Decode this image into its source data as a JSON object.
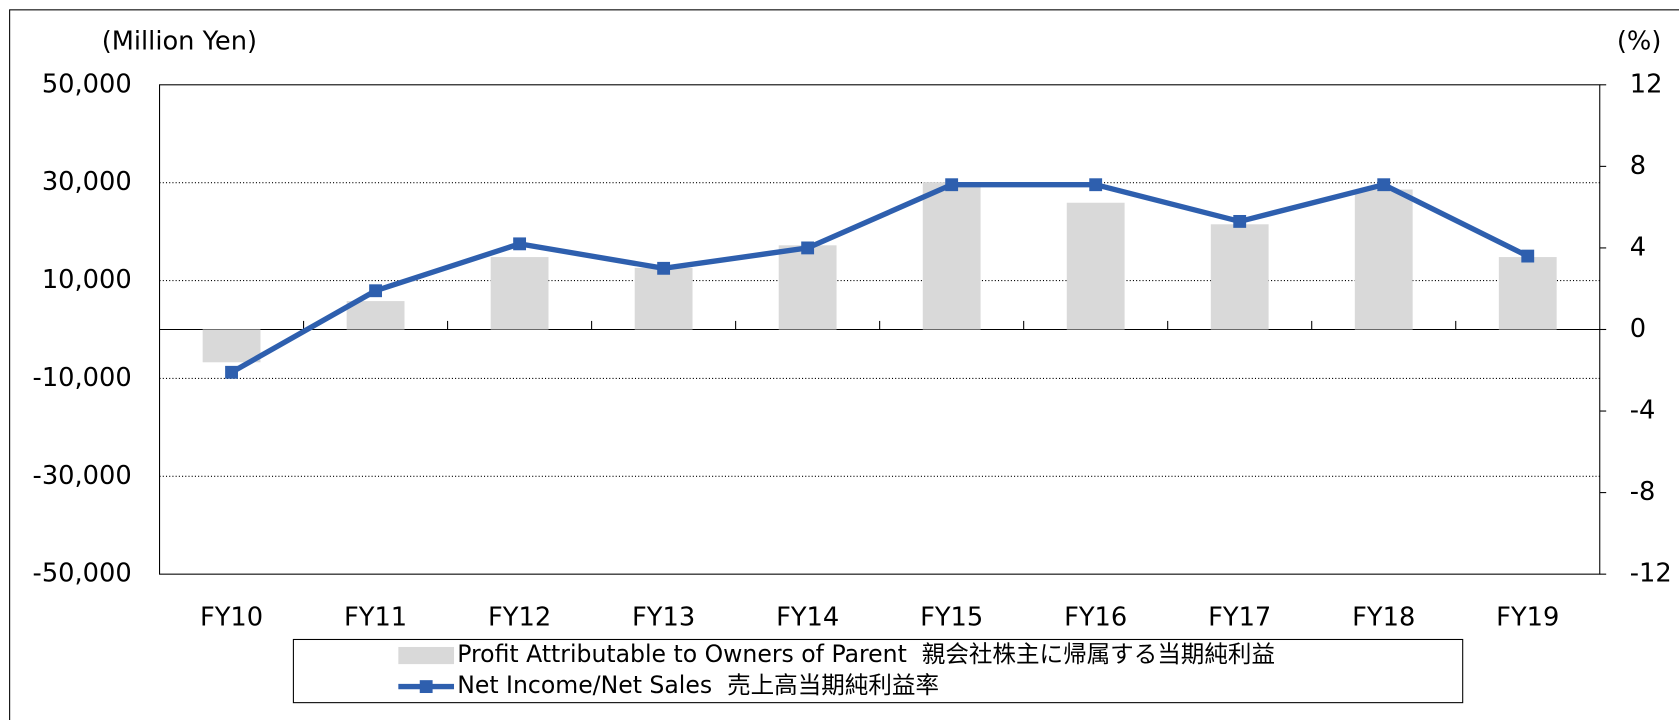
{
  "chart_data": {
    "type": "bar_line",
    "y_axis_label": "(Million Yen)",
    "y2_axis_label": "(%)",
    "categories": [
      "FY10",
      "FY11",
      "FY12",
      "FY13",
      "FY14",
      "FY15",
      "FY16",
      "FY17",
      "FY18",
      "FY19"
    ],
    "series": [
      {
        "name": "Profit Attributable to Owners of Parent  親会社株主に帰属する当期純利益",
        "color": "#d9d9d9",
        "type": "bar",
        "values": [
          -6700,
          5800,
          14800,
          12600,
          17200,
          30100,
          25900,
          21500,
          28600,
          14800
        ]
      },
      {
        "name": "Net Income/Net Sales  売上高当期純利益率",
        "color": "#2e5fae",
        "type": "line",
        "axis": "y2",
        "values": [
          -2.1,
          1.9,
          4.2,
          3.0,
          4.0,
          7.1,
          7.1,
          5.3,
          7.1,
          3.6
        ]
      }
    ],
    "ylim": [
      -50000,
      50000
    ],
    "yticks": [
      {
        "value": -50000,
        "label": "-50,000"
      },
      {
        "value": -30000,
        "label": "-30,000"
      },
      {
        "value": -10000,
        "label": "-10,000"
      },
      {
        "value": 10000,
        "label": "10,000"
      },
      {
        "value": 30000,
        "label": "30,000"
      },
      {
        "value": 50000,
        "label": "50,000"
      }
    ],
    "y2lim": [
      -12,
      12
    ],
    "y2ticks": [
      -12,
      -8,
      -4,
      0,
      4,
      8,
      12
    ],
    "grid": true
  }
}
